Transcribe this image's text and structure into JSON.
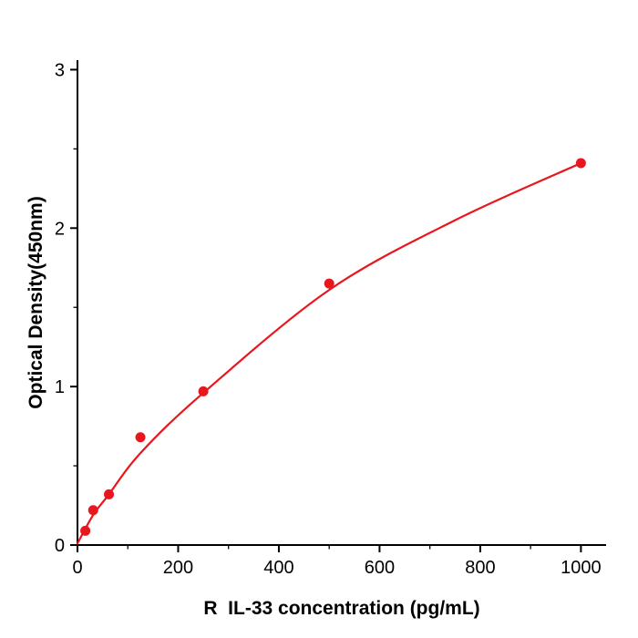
{
  "chart_data": {
    "type": "scatter",
    "title": "",
    "xlabel": "R  IL-33 concentration (pg/mL)",
    "ylabel": "Optical Density(450nm)",
    "points": {
      "x": [
        15.6,
        31.25,
        62.5,
        125,
        250,
        500,
        1000
      ],
      "y": [
        0.09,
        0.22,
        0.32,
        0.68,
        0.97,
        1.65,
        2.41
      ]
    },
    "trend_anchors": [
      [
        0,
        0.01
      ],
      [
        31.25,
        0.19
      ],
      [
        62.5,
        0.32
      ],
      [
        125,
        0.58
      ],
      [
        250,
        0.96
      ],
      [
        500,
        1.61
      ],
      [
        750,
        2.05
      ],
      [
        1000,
        2.41
      ]
    ],
    "xlim": [
      0,
      1050
    ],
    "ylim": [
      0,
      3.06
    ],
    "xticks": [
      0,
      200,
      400,
      600,
      800,
      1000
    ],
    "yticks": [
      0,
      1,
      2,
      3
    ],
    "x_minor_ticks": [
      100,
      300,
      500,
      700,
      900
    ],
    "y_minor_ticks": [
      0.5,
      1.5,
      2.5
    ],
    "grid": "off",
    "legend_position": "none",
    "colors": {
      "points": "#e8161d",
      "line": "#e8161d",
      "axis": "#000000"
    }
  }
}
